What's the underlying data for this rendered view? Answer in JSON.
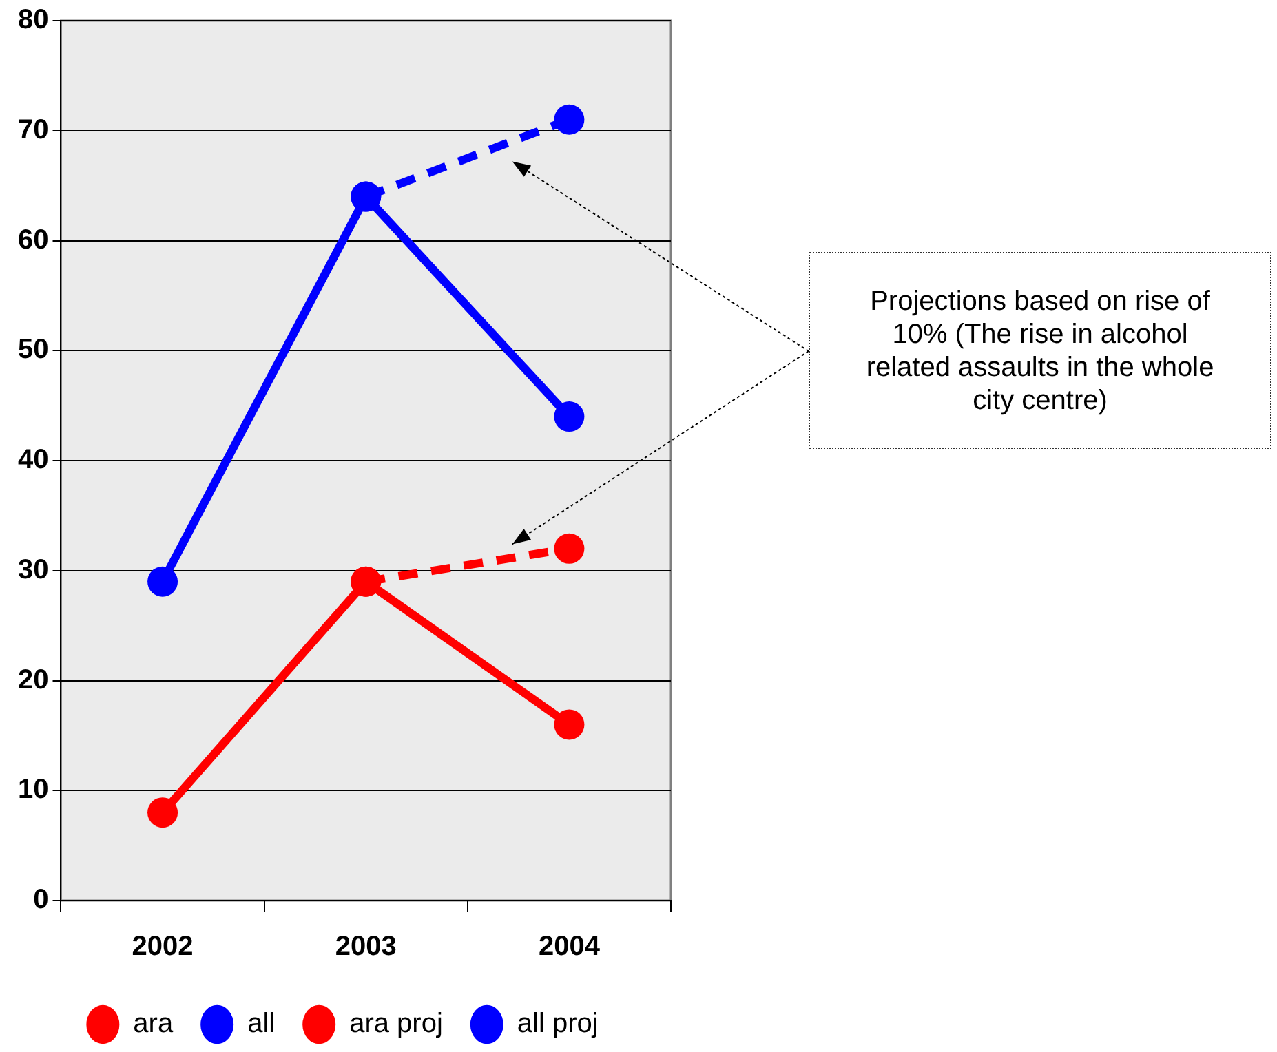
{
  "chart_data": {
    "type": "line",
    "categories": [
      "2002",
      "2003",
      "2004"
    ],
    "series": [
      {
        "name": "ara",
        "color": "#ff0000",
        "values": [
          8,
          29,
          16
        ],
        "line_style": "solid"
      },
      {
        "name": "all",
        "color": "#0000ff",
        "values": [
          29,
          64,
          44
        ],
        "line_style": "solid"
      },
      {
        "name": "ara proj",
        "color": "#ff0000",
        "values": [
          null,
          29,
          32
        ],
        "line_style": "dashed"
      },
      {
        "name": "all proj",
        "color": "#0000ff",
        "values": [
          null,
          64,
          71
        ],
        "line_style": "dashed"
      }
    ],
    "ylim": [
      0,
      80
    ],
    "yticks": [
      0,
      10,
      20,
      30,
      40,
      50,
      60,
      70,
      80
    ],
    "grid": "y",
    "legend": "bottom",
    "marker": "circle",
    "annotations": [
      "Projections based on rise of 10% (The rise in alcohol related assaults in the whole city centre)"
    ]
  }
}
